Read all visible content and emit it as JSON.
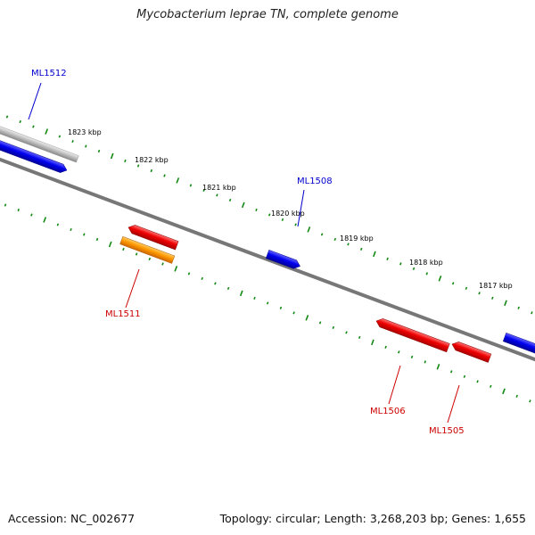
{
  "title": "Mycobacterium leprae TN, complete genome",
  "footer": {
    "accession": "Accession: NC_002677",
    "stats": "Topology: circular; Length: 3,268,203 bp; Genes: 1,655"
  },
  "scale": {
    "tick_labels": [
      "1823 kbp",
      "1822 kbp",
      "1821 kbp",
      "1820 kbp",
      "1819 kbp",
      "1818 kbp",
      "1817 kbp"
    ]
  },
  "genes": [
    {
      "label": "ML1512",
      "strand": "+",
      "color": "#0000cc",
      "label_color": "#0000cc"
    },
    {
      "label": "ML1508",
      "strand": "+",
      "color": "#0000ff",
      "label_color": "#0000cc"
    },
    {
      "label": "ML1511",
      "strand": "-",
      "color": "#ee0000",
      "label_color": "#cc0000"
    },
    {
      "label": "ML1506",
      "strand": "-",
      "color": "#ee0000",
      "label_color": "#cc0000"
    },
    {
      "label": "ML1505",
      "strand": "-",
      "color": "#ee0000",
      "label_color": "#cc0000"
    }
  ],
  "colors": {
    "backbone": "#777777",
    "tick": "#118811",
    "pseudogene": "#bbbbbb",
    "orange_feature": "#ff9900",
    "blue_edge_feature": "#0000ee"
  }
}
